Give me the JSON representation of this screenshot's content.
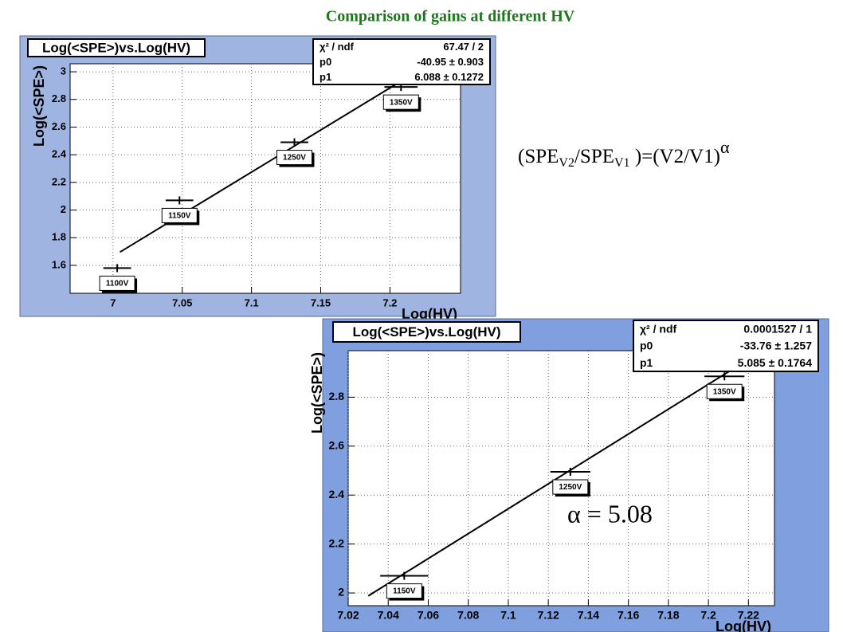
{
  "page": {
    "title": "Comparison of gains at different HV",
    "formula": {
      "open": "(SPE",
      "sub1": "V2",
      "mid": "/SPE",
      "sub2": "V1",
      "close": " )=(V2/V1)",
      "sup": "α"
    },
    "alpha_note": "α = 5.08"
  },
  "chart_data": [
    {
      "type": "scatter",
      "title": "Log(<SPE>)vs.Log(HV)",
      "xlabel": "Log(HV)",
      "ylabel": "Log(<SPE>)",
      "stats": [
        [
          "χ² / ndf",
          "67.47 / 2"
        ],
        [
          "p0",
          "-40.95 ± 0.903"
        ],
        [
          "p1",
          "6.088 ± 0.1272"
        ]
      ],
      "points": {
        "x": [
          7.003,
          7.048,
          7.131,
          7.208
        ],
        "values": [
          1.58,
          2.07,
          2.49,
          2.89
        ],
        "xerr": [
          0.01,
          0.01,
          0.01,
          0.012
        ],
        "labels": [
          "1100V",
          "1150V",
          "1250V",
          "1350V"
        ]
      },
      "fit": {
        "x": [
          7.005,
          7.21
        ],
        "values": [
          1.696,
          2.944
        ]
      },
      "xlim": [
        6.969,
        7.251
      ],
      "ylim": [
        1.398,
        3.058
      ],
      "xticks": [
        7,
        7.05,
        7.1,
        7.15,
        7.2
      ],
      "yticks": [
        1.6,
        1.8,
        2,
        2.2,
        2.4,
        2.6,
        2.8,
        3
      ],
      "grid": true,
      "color": "#000000"
    },
    {
      "type": "scatter",
      "title": "Log(<SPE>)vs.Log(HV)",
      "xlabel": "Log(HV)",
      "ylabel": "Log(<SPE>)",
      "stats": [
        [
          "χ² / ndf",
          "0.0001527 / 1"
        ],
        [
          "p0",
          "-33.76 ± 1.257"
        ],
        [
          "p1",
          "5.085 ± 0.1764"
        ]
      ],
      "points": {
        "x": [
          7.048,
          7.131,
          7.208
        ],
        "values": [
          2.07,
          2.495,
          2.885
        ],
        "xerr": [
          0.012,
          0.01,
          0.01
        ],
        "labels": [
          "1150V",
          "1250V",
          "1350V"
        ]
      },
      "fit": {
        "x": [
          7.03,
          7.225
        ],
        "values": [
          1.988,
          2.98
        ]
      },
      "xlim": [
        7.02,
        7.233
      ],
      "ylim": [
        1.948,
        2.99
      ],
      "xticks": [
        7.02,
        7.04,
        7.06,
        7.08,
        7.1,
        7.12,
        7.14,
        7.16,
        7.18,
        7.2,
        7.22
      ],
      "yticks": [
        2,
        2.2,
        2.4,
        2.6,
        2.8
      ],
      "grid": true,
      "color": "#000000"
    }
  ]
}
